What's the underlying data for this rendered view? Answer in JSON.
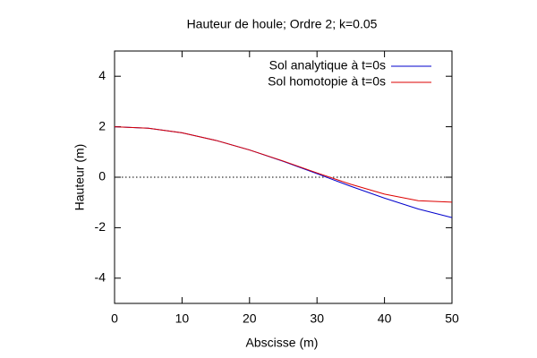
{
  "chart_data": {
    "type": "line",
    "title": "Hauteur de houle; Ordre 2; k=0.05",
    "x_label": "Abscisse (m)",
    "y_label": "Hauteur (m)",
    "x": [
      0,
      5,
      10,
      15,
      20,
      25,
      30,
      35,
      40,
      45,
      50
    ],
    "series": [
      {
        "name": "Sol analytique à t=0s",
        "color": "#0000cc",
        "values": [
          2,
          1.94,
          1.76,
          1.46,
          1.08,
          0.63,
          0.14,
          -0.36,
          -0.83,
          -1.26,
          -1.6
        ]
      },
      {
        "name": "Sol homotopie à t=0s",
        "color": "#dd0000",
        "values": [
          2,
          1.94,
          1.76,
          1.46,
          1.08,
          0.64,
          0.17,
          -0.28,
          -0.67,
          -0.93,
          -0.99
        ]
      }
    ],
    "xlim": [
      0,
      50
    ],
    "xticks": [
      0,
      10,
      20,
      30,
      40,
      50
    ],
    "ylim": [
      -5,
      5
    ],
    "yticks": [
      -4,
      -2,
      0,
      2,
      4
    ],
    "zero_line": true,
    "grid": false,
    "legend": "top-right"
  }
}
